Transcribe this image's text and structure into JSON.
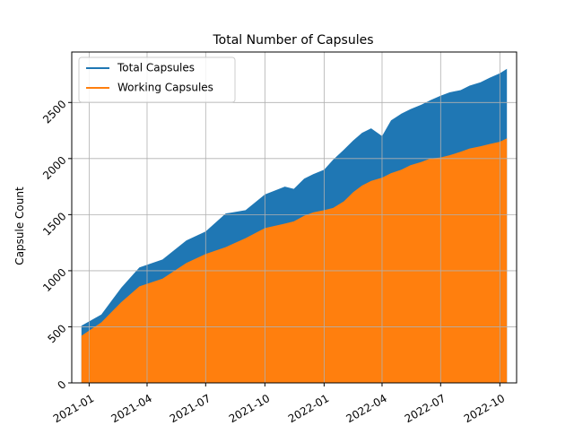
{
  "chart_data": {
    "type": "area",
    "title": "Total Number of Capsules",
    "xlabel": "",
    "ylabel": "Capsule Count",
    "x_ticks": [
      "2021-01",
      "2021-04",
      "2021-07",
      "2021-10",
      "2022-01",
      "2022-04",
      "2022-07",
      "2022-10"
    ],
    "y_ticks": [
      0,
      500,
      1000,
      1500,
      2000,
      2500
    ],
    "xlim": [
      "2020-12-05",
      "2022-10-27"
    ],
    "ylim": [
      0,
      2950
    ],
    "grid": true,
    "legend_position": "top-left",
    "x": [
      "2020-12-20",
      "2021-01-20",
      "2021-02-20",
      "2021-03-20",
      "2021-04-25",
      "2021-06-01",
      "2021-07-01",
      "2021-08-01",
      "2021-09-01",
      "2021-10-01",
      "2021-11-01",
      "2021-11-15",
      "2021-12-01",
      "2021-12-15",
      "2022-01-01",
      "2022-01-15",
      "2022-02-01",
      "2022-02-15",
      "2022-03-01",
      "2022-03-15",
      "2022-04-01",
      "2022-04-15",
      "2022-05-01",
      "2022-05-15",
      "2022-06-01",
      "2022-06-15",
      "2022-07-01",
      "2022-07-15",
      "2022-08-01",
      "2022-08-15",
      "2022-09-01",
      "2022-09-15",
      "2022-10-01",
      "2022-10-12"
    ],
    "series": [
      {
        "name": "Total Capsules",
        "color": "#1f77b4",
        "values": [
          510,
          610,
          850,
          1030,
          1100,
          1270,
          1350,
          1510,
          1540,
          1680,
          1750,
          1730,
          1820,
          1860,
          1900,
          1990,
          2080,
          2160,
          2230,
          2270,
          2200,
          2340,
          2400,
          2440,
          2480,
          2520,
          2560,
          2590,
          2610,
          2650,
          2680,
          2720,
          2760,
          2800
        ]
      },
      {
        "name": "Working Capsules",
        "color": "#ff7f0e",
        "values": [
          420,
          540,
          720,
          860,
          930,
          1070,
          1150,
          1210,
          1290,
          1380,
          1420,
          1440,
          1490,
          1520,
          1540,
          1560,
          1620,
          1700,
          1760,
          1800,
          1830,
          1870,
          1900,
          1940,
          1970,
          2000,
          2010,
          2030,
          2060,
          2090,
          2110,
          2130,
          2150,
          2180
        ]
      }
    ]
  }
}
